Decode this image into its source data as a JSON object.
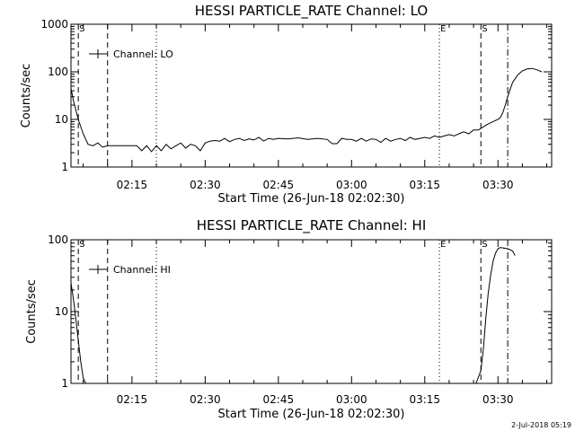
{
  "chart_data": [
    {
      "type": "line",
      "title": "HESSI PARTICLE_RATE Channel: LO",
      "xlabel": "Start Time (26-Jun-18 02:02:30)",
      "ylabel": "Counts/sec",
      "yscale": "log",
      "ylim": [
        1,
        1000
      ],
      "xlim": [
        "02:02:30",
        "03:41:00"
      ],
      "x_ticks": [
        "02:15",
        "02:30",
        "02:45",
        "03:00",
        "03:15",
        "03:30"
      ],
      "y_ticks": [
        "1",
        "10",
        "100",
        "1000"
      ],
      "grid": false,
      "legend": {
        "placement": "top-left",
        "entries": [
          "Channel: LO"
        ]
      },
      "series": [
        {
          "name": "Channel: LO",
          "x": [
            "02:02:30",
            "02:03:00",
            "02:04:00",
            "02:05:00",
            "02:06:00",
            "02:07:00",
            "02:08:00",
            "02:09:00",
            "02:10:00",
            "02:11:00",
            "02:12:00",
            "02:13:00",
            "02:14:00",
            "02:15:00",
            "02:16:00",
            "02:17:00",
            "02:18:00",
            "02:19:00",
            "02:20:00",
            "02:21:00",
            "02:22:00",
            "02:23:00",
            "02:24:00",
            "02:25:00",
            "02:26:00",
            "02:27:00",
            "02:28:00",
            "02:29:00",
            "02:30:00",
            "02:31:00",
            "02:32:00",
            "02:33:00",
            "02:34:00",
            "02:35:00",
            "02:36:00",
            "02:37:00",
            "02:38:00",
            "02:39:00",
            "02:40:00",
            "02:41:00",
            "02:42:00",
            "02:43:00",
            "02:44:00",
            "02:45:00",
            "02:47:00",
            "02:49:00",
            "02:51:00",
            "02:53:00",
            "02:55:00",
            "02:56:00",
            "02:57:00",
            "02:58:00",
            "02:59:00",
            "03:00:00",
            "03:01:00",
            "03:02:00",
            "03:03:00",
            "03:04:00",
            "03:05:00",
            "03:06:00",
            "03:07:00",
            "03:08:00",
            "03:09:00",
            "03:10:00",
            "03:11:00",
            "03:12:00",
            "03:13:00",
            "03:14:00",
            "03:15:00",
            "03:16:00",
            "03:17:00",
            "03:18:00",
            "03:19:00",
            "03:20:00",
            "03:21:00",
            "03:22:00",
            "03:23:00",
            "03:24:00",
            "03:25:00",
            "03:26:00",
            "03:27:00",
            "03:28:00",
            "03:29:00",
            "03:30:00",
            "03:30:30",
            "03:31:00",
            "03:31:30",
            "03:32:00",
            "03:33:00",
            "03:34:00",
            "03:35:00",
            "03:36:00",
            "03:37:00",
            "03:38:00",
            "03:39:00"
          ],
          "values": [
            45,
            25,
            10,
            5,
            3,
            2.8,
            3.2,
            2.6,
            2.8,
            2.8,
            2.8,
            2.8,
            2.8,
            2.8,
            2.8,
            2.2,
            2.8,
            2.1,
            2.8,
            2.2,
            3,
            2.4,
            2.8,
            3.2,
            2.5,
            3,
            2.8,
            2.2,
            3.2,
            3.5,
            3.6,
            3.5,
            4,
            3.4,
            3.8,
            4,
            3.6,
            3.9,
            3.7,
            4.2,
            3.5,
            4,
            3.8,
            4,
            3.9,
            4.1,
            3.8,
            4,
            3.8,
            3.1,
            3.1,
            4,
            3.8,
            3.8,
            3.5,
            4,
            3.5,
            3.9,
            3.8,
            3.3,
            4,
            3.5,
            3.8,
            4,
            3.6,
            4.2,
            3.8,
            4,
            4.2,
            4,
            4.5,
            4.2,
            4.5,
            4.8,
            4.5,
            5,
            5.5,
            5,
            6,
            6,
            7,
            8,
            9,
            10,
            11,
            14,
            20,
            30,
            60,
            85,
            105,
            115,
            118,
            110,
            100
          ]
        }
      ],
      "markers": [
        {
          "label": "S",
          "type": "dashed",
          "x": "02:04:00"
        },
        {
          "label": "",
          "type": "dashed",
          "x": "02:10:00"
        },
        {
          "label": "",
          "type": "dotted",
          "x": "02:20:00"
        },
        {
          "label": "E",
          "type": "dotted",
          "x": "03:18:00"
        },
        {
          "label": "S",
          "type": "dashed",
          "x": "03:26:30"
        },
        {
          "label": "",
          "type": "dashdot",
          "x": "03:32:00"
        }
      ]
    },
    {
      "type": "line",
      "title": "HESSI PARTICLE_RATE Channel: HI",
      "xlabel": "Start Time (26-Jun-18 02:02:30)",
      "ylabel": "Counts/sec",
      "yscale": "log",
      "ylim": [
        1,
        100
      ],
      "xlim": [
        "02:02:30",
        "03:41:00"
      ],
      "x_ticks": [
        "02:15",
        "02:30",
        "02:45",
        "03:00",
        "03:15",
        "03:30"
      ],
      "y_ticks": [
        "1",
        "10",
        "100"
      ],
      "grid": false,
      "legend": {
        "placement": "top-left",
        "entries": [
          "Channel: HI"
        ]
      },
      "series": [
        {
          "name": "Channel: HI",
          "x": [
            "02:02:30",
            "02:03:00",
            "02:03:30",
            "02:04:00",
            "02:04:30",
            "02:05:00",
            "02:05:30",
            "03:25:30",
            "03:26:30",
            "03:27:00",
            "03:27:30",
            "03:28:00",
            "03:28:30",
            "03:29:00",
            "03:29:30",
            "03:30:00",
            "03:30:30",
            "03:31:00",
            "03:32:00",
            "03:33:00",
            "03:33:30"
          ],
          "values": [
            25,
            15,
            8,
            4,
            2,
            1.2,
            1,
            1,
            1.5,
            3,
            8,
            18,
            32,
            50,
            65,
            75,
            78,
            77,
            75,
            70,
            60
          ]
        }
      ],
      "markers": [
        {
          "label": "S",
          "type": "dashed",
          "x": "02:04:00"
        },
        {
          "label": "",
          "type": "dashed",
          "x": "02:10:00"
        },
        {
          "label": "",
          "type": "dotted",
          "x": "02:20:00"
        },
        {
          "label": "E",
          "type": "dotted",
          "x": "03:18:00"
        },
        {
          "label": "S",
          "type": "dashed",
          "x": "03:26:30"
        },
        {
          "label": "",
          "type": "dashdot",
          "x": "03:32:00"
        }
      ]
    }
  ],
  "footer": {
    "timestamp": "2-Jul-2018 05:19"
  }
}
